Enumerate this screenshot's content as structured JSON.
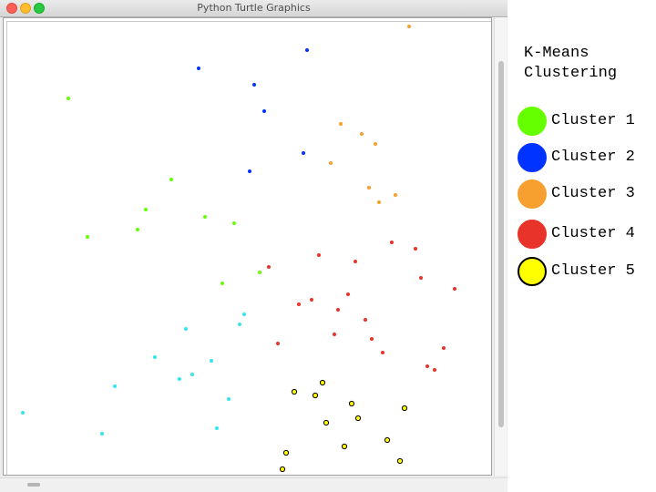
{
  "window": {
    "title": "Python Turtle Graphics"
  },
  "legend": {
    "title_lines": [
      "K-Means",
      "Clustering"
    ],
    "items": [
      {
        "label": "Cluster 1",
        "color": "#66ff00",
        "border": "#66ff00"
      },
      {
        "label": "Cluster 2",
        "color": "#0033ff",
        "border": "#0033ff"
      },
      {
        "label": "Cluster 3",
        "color": "#f7a030",
        "border": "#f7a030"
      },
      {
        "label": "Cluster 4",
        "color": "#e8332a",
        "border": "#e8332a"
      },
      {
        "label": "Cluster 5",
        "color": "#ffff00",
        "border": "#000000"
      }
    ]
  },
  "chart_data": {
    "type": "scatter",
    "xlim": [
      0,
      537
    ],
    "ylim": [
      0,
      503
    ],
    "y_axis": "top-down",
    "series": [
      {
        "cluster": 1,
        "color": "#66ff00",
        "points": [
          [
            71,
            88
          ],
          [
            184,
            177
          ],
          [
            156,
            210
          ],
          [
            221,
            218
          ],
          [
            253,
            225
          ],
          [
            92,
            240
          ],
          [
            147,
            232
          ],
          [
            281,
            279
          ],
          [
            240,
            291
          ]
        ]
      },
      {
        "cluster": 2,
        "color": "#0033ff",
        "points": [
          [
            333,
            35
          ],
          [
            214,
            55
          ],
          [
            275,
            73
          ],
          [
            286,
            102
          ],
          [
            329,
            148
          ],
          [
            270,
            168
          ]
        ]
      },
      {
        "cluster": 3,
        "color": "#f7a030",
        "points": [
          [
            445,
            9
          ],
          [
            370,
            116
          ],
          [
            393,
            127
          ],
          [
            408,
            138
          ],
          [
            359,
            159
          ],
          [
            401,
            186
          ],
          [
            430,
            194
          ],
          [
            412,
            202
          ]
        ]
      },
      {
        "cluster": 4,
        "color": "#e8332a",
        "points": [
          [
            426,
            246
          ],
          [
            452,
            253
          ],
          [
            346,
            260
          ],
          [
            386,
            267
          ],
          [
            291,
            273
          ],
          [
            458,
            285
          ],
          [
            495,
            297
          ],
          [
            378,
            303
          ],
          [
            338,
            309
          ],
          [
            324,
            314
          ],
          [
            367,
            320
          ],
          [
            397,
            331
          ],
          [
            363,
            347
          ],
          [
            301,
            357
          ],
          [
            404,
            352
          ],
          [
            416,
            367
          ],
          [
            483,
            362
          ],
          [
            465,
            382
          ],
          [
            473,
            386
          ]
        ]
      },
      {
        "cluster": 5,
        "color": "#ffff00",
        "outline": "#000000",
        "points": [
          [
            350,
            400
          ],
          [
            319,
            410
          ],
          [
            342,
            414
          ],
          [
            382,
            423
          ],
          [
            440,
            428
          ],
          [
            389,
            439
          ],
          [
            354,
            444
          ],
          [
            421,
            463
          ],
          [
            374,
            470
          ],
          [
            310,
            477
          ],
          [
            435,
            486
          ],
          [
            306,
            495
          ]
        ]
      },
      {
        "cluster": "unlabeled",
        "color": "#33e5f0",
        "points": [
          [
            264,
            325
          ],
          [
            259,
            336
          ],
          [
            200,
            341
          ],
          [
            166,
            372
          ],
          [
            228,
            376
          ],
          [
            207,
            391
          ],
          [
            193,
            396
          ],
          [
            122,
            404
          ],
          [
            247,
            418
          ],
          [
            21,
            433
          ],
          [
            234,
            450
          ],
          [
            108,
            456
          ]
        ]
      }
    ]
  }
}
